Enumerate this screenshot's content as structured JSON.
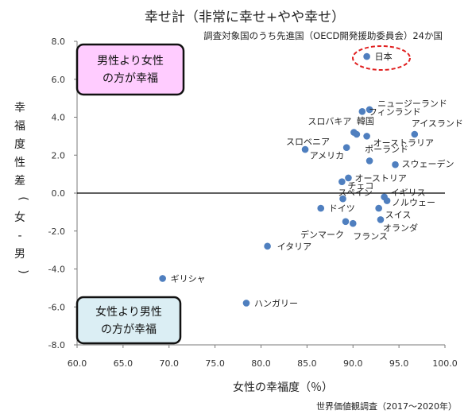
{
  "chart_data": {
    "type": "scatter",
    "title": "幸せ計（非常に幸せ+やや幸せ）",
    "subtitle": "調査対象国のうち先進国（OECD開発援助委員会）24か国",
    "xlabel": "女性の幸福度（％）",
    "ylabel": "幸福度性差（女-男）",
    "xlim": [
      60.0,
      100.0
    ],
    "ylim": [
      -8.0,
      8.0
    ],
    "x_ticks": [
      "60.0",
      "65.0",
      "70.0",
      "75.0",
      "80.0",
      "85.0",
      "90.0",
      "95.0",
      "100.0"
    ],
    "y_ticks": [
      "8.0",
      "6.0",
      "4.0",
      "2.0",
      "0.0",
      "-2.0",
      "-4.0",
      "-6.0",
      "-8.0"
    ],
    "point_color": "#4f7fbf",
    "zero_line": true,
    "grid": false,
    "source_note": "世界価値観調査（2017～2020年）",
    "annotation_upper": [
      "男性より女性",
      "の方が幸福"
    ],
    "annotation_lower": [
      "女性より男性",
      "の方が幸福"
    ],
    "upper_box_color": "#ffccff",
    "lower_box_color": "#dbeef4",
    "highlight_label": "日本",
    "highlight_color": "#e02020",
    "points": [
      {
        "label": "日本",
        "x": 91.5,
        "y": 7.2
      },
      {
        "label": "ニュージーランド",
        "x": 91.8,
        "y": 4.4
      },
      {
        "label": "フィンランド",
        "x": 91.0,
        "y": 4.3
      },
      {
        "label": "アイスランド",
        "x": 96.7,
        "y": 3.1
      },
      {
        "label": "スロバキア",
        "x": 90.1,
        "y": 3.2
      },
      {
        "label": "韓国",
        "x": 90.4,
        "y": 3.1
      },
      {
        "label": "オーストラリア",
        "x": 91.5,
        "y": 3.0
      },
      {
        "label": "スロベニア",
        "x": 84.8,
        "y": 2.3
      },
      {
        "label": "アメリカ",
        "x": 89.3,
        "y": 2.4
      },
      {
        "label": "ポーランド",
        "x": 91.8,
        "y": 1.7
      },
      {
        "label": "スウェーデン",
        "x": 94.6,
        "y": 1.5
      },
      {
        "label": "オーストリア",
        "x": 89.5,
        "y": 0.8
      },
      {
        "label": "チェコ",
        "x": 88.8,
        "y": 0.6
      },
      {
        "label": "スペイン",
        "x": 88.9,
        "y": -0.3
      },
      {
        "label": "イギリス",
        "x": 93.4,
        "y": -0.2
      },
      {
        "label": "ノルウェー",
        "x": 93.7,
        "y": -0.4
      },
      {
        "label": "ドイツ",
        "x": 86.5,
        "y": -0.8
      },
      {
        "label": "スイス",
        "x": 92.8,
        "y": -0.8
      },
      {
        "label": "オランダ",
        "x": 93.0,
        "y": -1.4
      },
      {
        "label": "デンマーク",
        "x": 89.2,
        "y": -1.5
      },
      {
        "label": "フランス",
        "x": 90.0,
        "y": -1.6
      },
      {
        "label": "イタリア",
        "x": 80.7,
        "y": -2.8
      },
      {
        "label": "ギリシャ",
        "x": 69.3,
        "y": -4.5
      },
      {
        "label": "ハンガリー",
        "x": 78.4,
        "y": -5.8
      }
    ]
  }
}
